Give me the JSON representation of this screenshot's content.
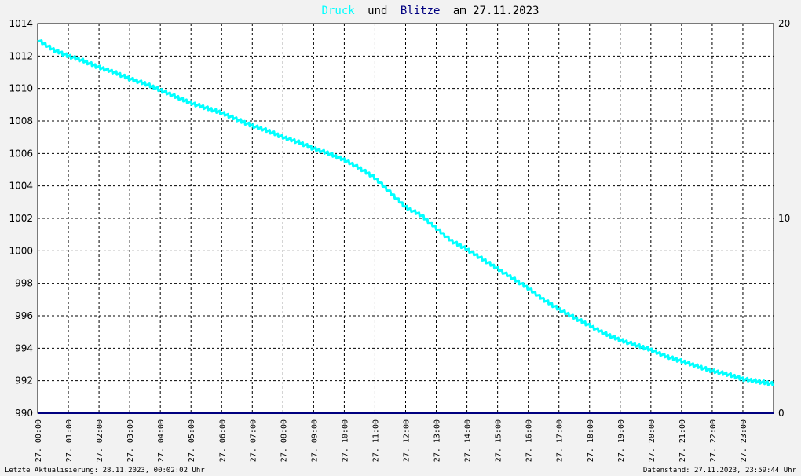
{
  "title": {
    "part1": "Druck",
    "part2": "und",
    "part3": "Blitze",
    "part4": "am 27.11.2023"
  },
  "colors": {
    "druck": "#00ffff",
    "blitze": "#000080",
    "title_und": "#000000",
    "grid": "#000000",
    "background": "#ffffff",
    "page": "#f2f2f2"
  },
  "footer": {
    "left": "Letzte Aktualisierung: 28.11.2023, 00:02:02 Uhr",
    "right": "Datenstand: 27.11.2023, 23:59:44 Uhr"
  },
  "chart_data": {
    "type": "line",
    "title": "Druck und Blitze am 27.11.2023",
    "x_unit": "hours",
    "xlim": [
      0,
      24
    ],
    "y_left": {
      "lim": [
        990,
        1014
      ],
      "ticks": [
        "1014",
        "1012",
        "1010",
        "1008",
        "1006",
        "1004",
        "1002",
        "1000",
        "998",
        "996",
        "994",
        "992",
        "990"
      ]
    },
    "y_right": {
      "lim": [
        0,
        20
      ],
      "ticks": [
        "20",
        "10",
        "0"
      ]
    },
    "x_ticks": [
      "27. 00:00",
      "27. 01:00",
      "27. 02:00",
      "27. 03:00",
      "27. 04:00",
      "27. 05:00",
      "27. 06:00",
      "27. 07:00",
      "27. 08:00",
      "27. 09:00",
      "27. 10:00",
      "27. 11:00",
      "27. 12:00",
      "27. 13:00",
      "27. 14:00",
      "27. 15:00",
      "27. 16:00",
      "27. 17:00",
      "27. 18:00",
      "27. 19:00",
      "27. 20:00",
      "27. 21:00",
      "27. 22:00",
      "27. 23:00"
    ],
    "grid": true,
    "series": [
      {
        "name": "Druck",
        "axis": "left",
        "x": [
          0,
          0.5,
          1,
          1.5,
          2,
          2.5,
          3,
          3.5,
          4,
          4.5,
          5,
          5.5,
          6,
          6.5,
          7,
          7.5,
          8,
          8.5,
          9,
          9.5,
          10,
          10.5,
          11,
          11.5,
          12,
          12.5,
          13,
          13.5,
          14,
          14.5,
          15,
          15.5,
          16,
          16.5,
          17,
          17.5,
          18,
          18.5,
          19,
          19.5,
          20,
          20.5,
          21,
          21.5,
          22,
          22.5,
          23,
          23.5,
          23.99
        ],
        "y": [
          1013.0,
          1012.4,
          1012.0,
          1011.7,
          1011.3,
          1011.0,
          1010.6,
          1010.3,
          1009.9,
          1009.5,
          1009.1,
          1008.8,
          1008.5,
          1008.1,
          1007.7,
          1007.4,
          1007.0,
          1006.7,
          1006.3,
          1006.0,
          1005.6,
          1005.1,
          1004.5,
          1003.6,
          1002.7,
          1002.2,
          1001.4,
          1000.6,
          1000.1,
          999.5,
          998.9,
          998.3,
          997.7,
          997.0,
          996.4,
          995.9,
          995.4,
          994.9,
          994.5,
          994.2,
          993.9,
          993.5,
          993.2,
          992.9,
          992.6,
          992.4,
          992.1,
          991.95,
          991.8
        ]
      },
      {
        "name": "Blitze",
        "axis": "right",
        "x": [
          0,
          24
        ],
        "y": [
          0,
          0
        ]
      }
    ]
  }
}
